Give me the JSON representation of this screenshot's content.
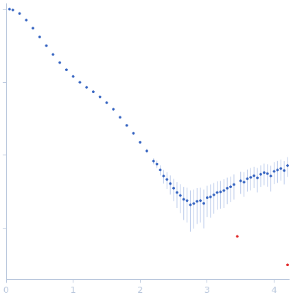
{
  "chart_data": {
    "type": "scatter",
    "log": "y",
    "grid": false,
    "tick_labels": "x",
    "marker": "circle",
    "xlim": [
      0,
      4.22
    ],
    "ylim": [
      0.002,
      12
    ],
    "xticks": [
      0,
      1,
      2,
      3,
      4
    ],
    "yticks": [
      0.01,
      0.1,
      1,
      10
    ],
    "series": [
      {
        "color": "#2f5fbf",
        "x": [
          0.05,
          0.1,
          0.2,
          0.3,
          0.4,
          0.5,
          0.6,
          0.7,
          0.8,
          0.9,
          1.0,
          1.1,
          1.2,
          1.3,
          1.4,
          1.5,
          1.6,
          1.7,
          1.8,
          1.9,
          2.0,
          2.1,
          2.2,
          2.25,
          2.3,
          2.35,
          2.4,
          2.45,
          2.5,
          2.55,
          2.6,
          2.65,
          2.7,
          2.75,
          2.8,
          2.85,
          2.9,
          2.95,
          3.0,
          3.05,
          3.1,
          3.15,
          3.2,
          3.25,
          3.3,
          3.35,
          3.4,
          3.5,
          3.55,
          3.6,
          3.65,
          3.7,
          3.75,
          3.8,
          3.85,
          3.9,
          3.95,
          4.0,
          4.05,
          4.1,
          4.15,
          4.2
        ],
        "values": [
          10,
          9.77,
          8.71,
          7.08,
          5.5,
          4.17,
          3.16,
          2.4,
          1.86,
          1.48,
          1.2,
          1.0,
          0.851,
          0.741,
          0.631,
          0.525,
          0.427,
          0.331,
          0.257,
          0.2,
          0.151,
          0.115,
          0.0832,
          0.076,
          0.0631,
          0.052,
          0.0468,
          0.041,
          0.0355,
          0.031,
          0.0282,
          0.025,
          0.024,
          0.021,
          0.0219,
          0.0235,
          0.024,
          0.022,
          0.0263,
          0.027,
          0.0288,
          0.031,
          0.0316,
          0.033,
          0.0355,
          0.037,
          0.0398,
          0.0447,
          0.043,
          0.0479,
          0.05,
          0.0525,
          0.049,
          0.055,
          0.058,
          0.0562,
          0.052,
          0.0603,
          0.063,
          0.0661,
          0.062,
          0.0724
        ],
        "errors": [
          0.05,
          0.05,
          0.04,
          0.03,
          0.03,
          0.02,
          0.02,
          0.015,
          0.012,
          0.01,
          0.008,
          0.007,
          0.006,
          0.006,
          0.006,
          0.006,
          0.006,
          0.005,
          0.005,
          0.005,
          0.006,
          0.007,
          0.008,
          0.009,
          0.01,
          0.011,
          0.012,
          0.012,
          0.012,
          0.012,
          0.012,
          0.012,
          0.012,
          0.012,
          0.012,
          0.012,
          0.012,
          0.012,
          0.012,
          0.013,
          0.013,
          0.013,
          0.013,
          0.014,
          0.014,
          0.014,
          0.015,
          0.015,
          0.016,
          0.016,
          0.017,
          0.017,
          0.018,
          0.018,
          0.019,
          0.019,
          0.02,
          0.02,
          0.021,
          0.021,
          0.022,
          0.022
        ]
      },
      {
        "color": "#e02020",
        "x": [
          3.45,
          4.2
        ],
        "values": [
          0.00776,
          0.00316
        ]
      }
    ]
  }
}
